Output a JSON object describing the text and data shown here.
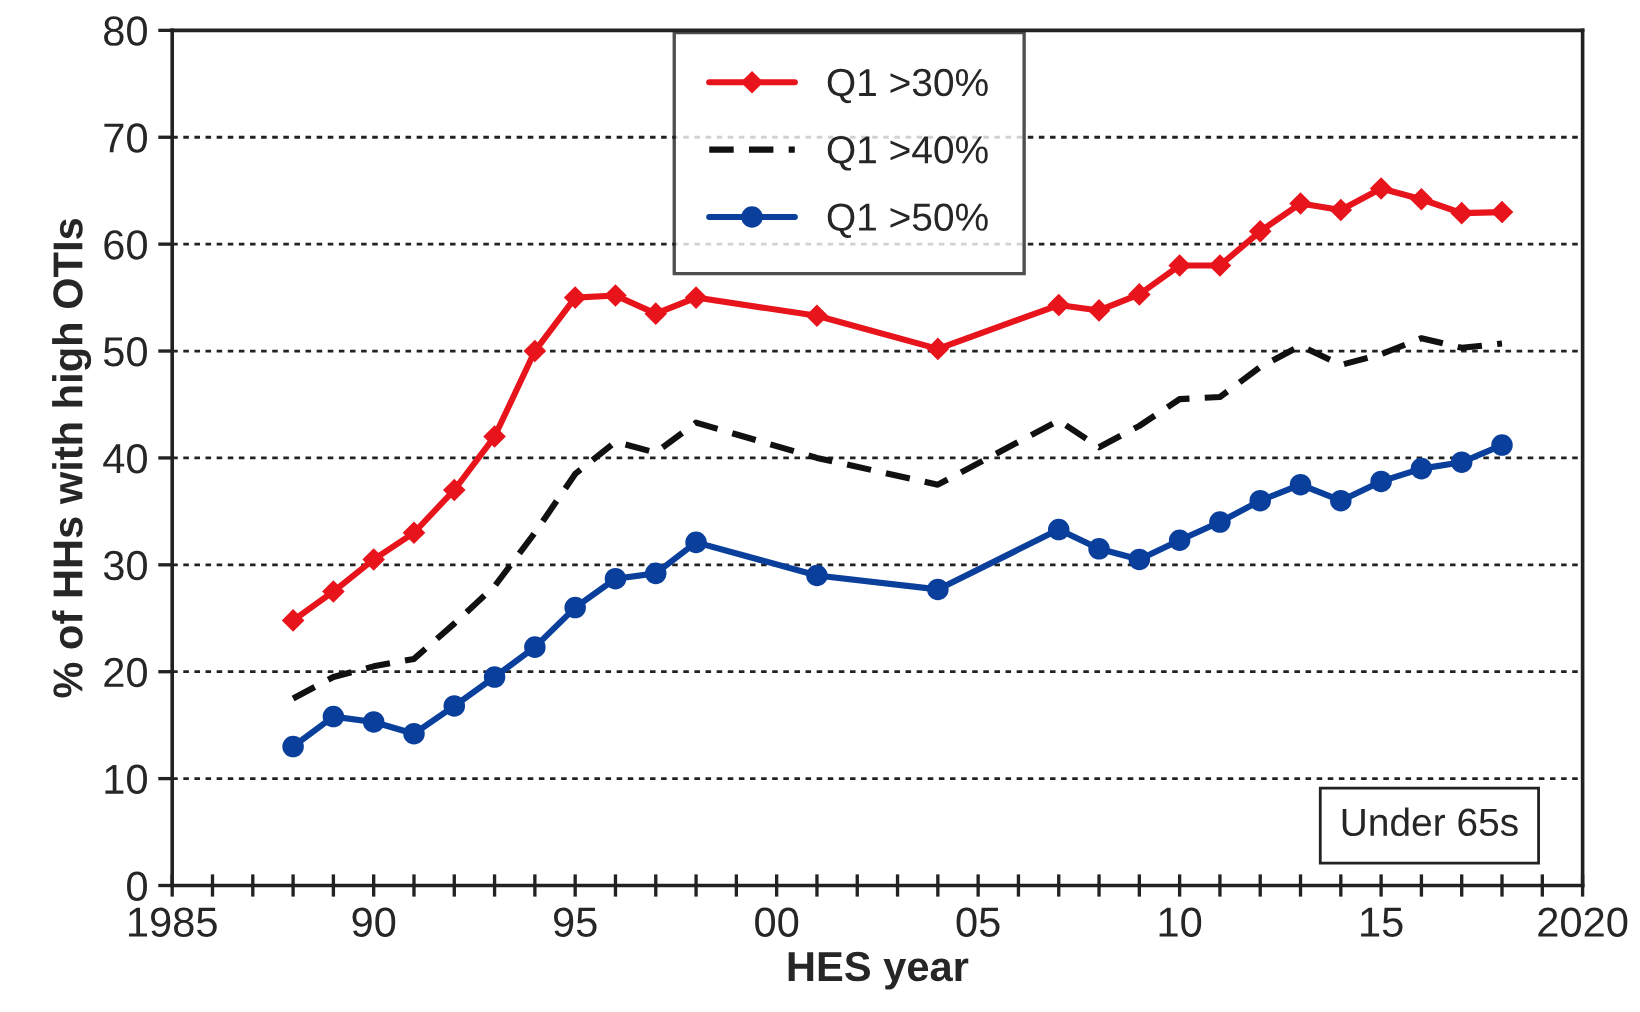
{
  "chart_data": {
    "type": "line",
    "xlabel": "HES year",
    "ylabel": "% of HHs with high OTIs",
    "x": [
      1988,
      1989,
      1990,
      1991,
      1992,
      1993,
      1994,
      1995,
      1996,
      1997,
      1998,
      2001,
      2004,
      2007,
      2008,
      2009,
      2010,
      2011,
      2012,
      2013,
      2014,
      2015,
      2016,
      2017,
      2018
    ],
    "series": [
      {
        "name": "Q1 >30%",
        "color": "#e8141c",
        "marker": "diamond",
        "line_style": "solid",
        "values": [
          24.8,
          27.5,
          30.5,
          33,
          37,
          42,
          50,
          55,
          55.2,
          53.5,
          55,
          53.3,
          50.2,
          54.3,
          53.8,
          55.3,
          58,
          58,
          61.2,
          63.8,
          63.2,
          65.2,
          64.2,
          62.9,
          63
        ]
      },
      {
        "name": "Q1 >40%",
        "color": "#111111",
        "marker": "none",
        "line_style": "dashed",
        "values": [
          17.5,
          19.5,
          20.5,
          21.2,
          24.5,
          28,
          33,
          38.5,
          41.5,
          40.5,
          43.3,
          40,
          37.5,
          43.5,
          41,
          43,
          45.5,
          45.7,
          48.5,
          50.5,
          48.7,
          49.7,
          51.2,
          50.3,
          50.7
        ]
      },
      {
        "name": "Q1 >50%",
        "color": "#0a3f9c",
        "marker": "circle",
        "line_style": "solid",
        "values": [
          13,
          15.8,
          15.3,
          14.2,
          16.8,
          19.5,
          22.3,
          26,
          28.7,
          29.2,
          32.1,
          29,
          27.7,
          33.3,
          31.5,
          30.5,
          32.3,
          34,
          36,
          37.5,
          36,
          37.8,
          39,
          39.6,
          41.2
        ]
      }
    ],
    "xlim": [
      1985,
      2020
    ],
    "xticks": [
      1985,
      {
        "value": 1986,
        "label": null
      },
      {
        "value": 1987,
        "label": null
      },
      {
        "value": 1988,
        "label": null
      },
      {
        "value": 1989,
        "label": null
      },
      {
        "value": 1990,
        "label": "90"
      },
      {
        "value": 1991,
        "label": null
      },
      {
        "value": 1992,
        "label": null
      },
      {
        "value": 1993,
        "label": null
      },
      {
        "value": 1994,
        "label": null
      },
      {
        "value": 1995,
        "label": "95"
      },
      {
        "value": 1996,
        "label": null
      },
      {
        "value": 1997,
        "label": null
      },
      {
        "value": 1998,
        "label": null
      },
      {
        "value": 1999,
        "label": null
      },
      {
        "value": 2000,
        "label": "00"
      },
      {
        "value": 2001,
        "label": null
      },
      {
        "value": 2002,
        "label": null
      },
      {
        "value": 2003,
        "label": null
      },
      {
        "value": 2004,
        "label": null
      },
      {
        "value": 2005,
        "label": "05"
      },
      {
        "value": 2006,
        "label": null
      },
      {
        "value": 2007,
        "label": null
      },
      {
        "value": 2008,
        "label": null
      },
      {
        "value": 2009,
        "label": null
      },
      {
        "value": 2010,
        "label": "10"
      },
      {
        "value": 2011,
        "label": null
      },
      {
        "value": 2012,
        "label": null
      },
      {
        "value": 2013,
        "label": null
      },
      {
        "value": 2014,
        "label": null
      },
      {
        "value": 2015,
        "label": "15"
      },
      {
        "value": 2016,
        "label": null
      },
      {
        "value": 2017,
        "label": null
      },
      {
        "value": 2018,
        "label": null
      },
      {
        "value": 2019,
        "label": null
      },
      2020
    ],
    "ylim": [
      0,
      80
    ],
    "yticks": [
      0,
      10,
      20,
      30,
      40,
      50,
      60,
      70,
      80
    ],
    "grid": "y",
    "legend": "top",
    "annotations": [
      "Under 65s"
    ]
  }
}
